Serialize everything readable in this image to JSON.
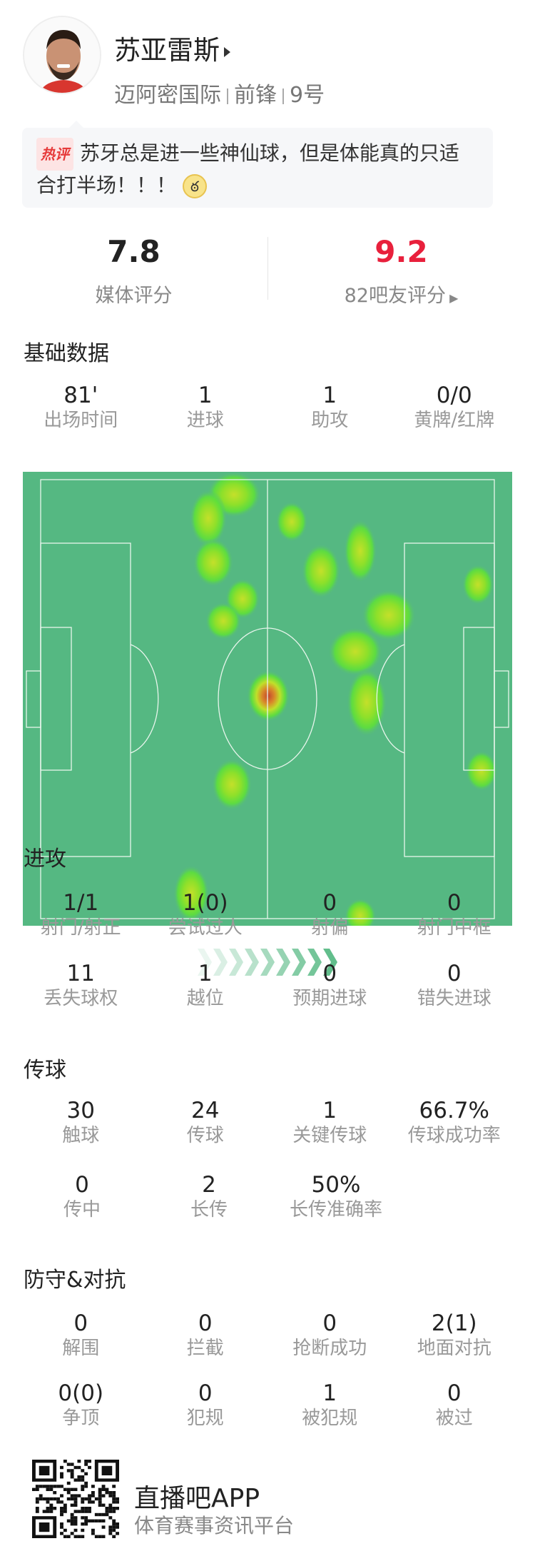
{
  "player": {
    "name": "苏亚雷斯",
    "team": "迈阿密国际",
    "position": "前锋",
    "number": "9号"
  },
  "comment": {
    "badge": "热评",
    "text": "苏牙总是进一些神仙球，但是体能真的只适合打半场！！！",
    "emoji": "cat-face-emoji"
  },
  "ratings": {
    "media_value": "7.8",
    "media_label": "媒体评分",
    "fans_value": "9.2",
    "fans_label": "82吧友评分",
    "fans_color": "#e8203c"
  },
  "basic": {
    "title": "基础数据",
    "items": [
      {
        "v": "81'",
        "l": "出场时间"
      },
      {
        "v": "1",
        "l": "进球"
      },
      {
        "v": "1",
        "l": "助攻"
      },
      {
        "v": "0/0",
        "l": "黄牌/红牌"
      }
    ]
  },
  "heatmap": {
    "pitch_color": "#55b882",
    "attack_direction": "right"
  },
  "attack": {
    "title": "进攻",
    "items": [
      {
        "v": "1/1",
        "l": "射门/射正"
      },
      {
        "v": "1(0)",
        "l": "尝试过人"
      },
      {
        "v": "0",
        "l": "射偏"
      },
      {
        "v": "0",
        "l": "射门中框"
      },
      {
        "v": "11",
        "l": "丢失球权"
      },
      {
        "v": "1",
        "l": "越位"
      },
      {
        "v": "0",
        "l": "预期进球"
      },
      {
        "v": "0",
        "l": "错失进球"
      }
    ]
  },
  "passing": {
    "title": "传球",
    "items": [
      {
        "v": "30",
        "l": "触球"
      },
      {
        "v": "24",
        "l": "传球"
      },
      {
        "v": "1",
        "l": "关键传球"
      },
      {
        "v": "66.7%",
        "l": "传球成功率"
      },
      {
        "v": "0",
        "l": "传中"
      },
      {
        "v": "2",
        "l": "长传"
      },
      {
        "v": "50%",
        "l": "长传准确率"
      }
    ]
  },
  "defense": {
    "title": "防守&对抗",
    "items": [
      {
        "v": "0",
        "l": "解围"
      },
      {
        "v": "0",
        "l": "拦截"
      },
      {
        "v": "0",
        "l": "抢断成功"
      },
      {
        "v": "2(1)",
        "l": "地面对抗"
      },
      {
        "v": "0(0)",
        "l": "争顶"
      },
      {
        "v": "0",
        "l": "犯规"
      },
      {
        "v": "1",
        "l": "被犯规"
      },
      {
        "v": "0",
        "l": "被过"
      }
    ]
  },
  "footer": {
    "app": "直播吧APP",
    "tagline": "体育赛事资讯平台"
  }
}
